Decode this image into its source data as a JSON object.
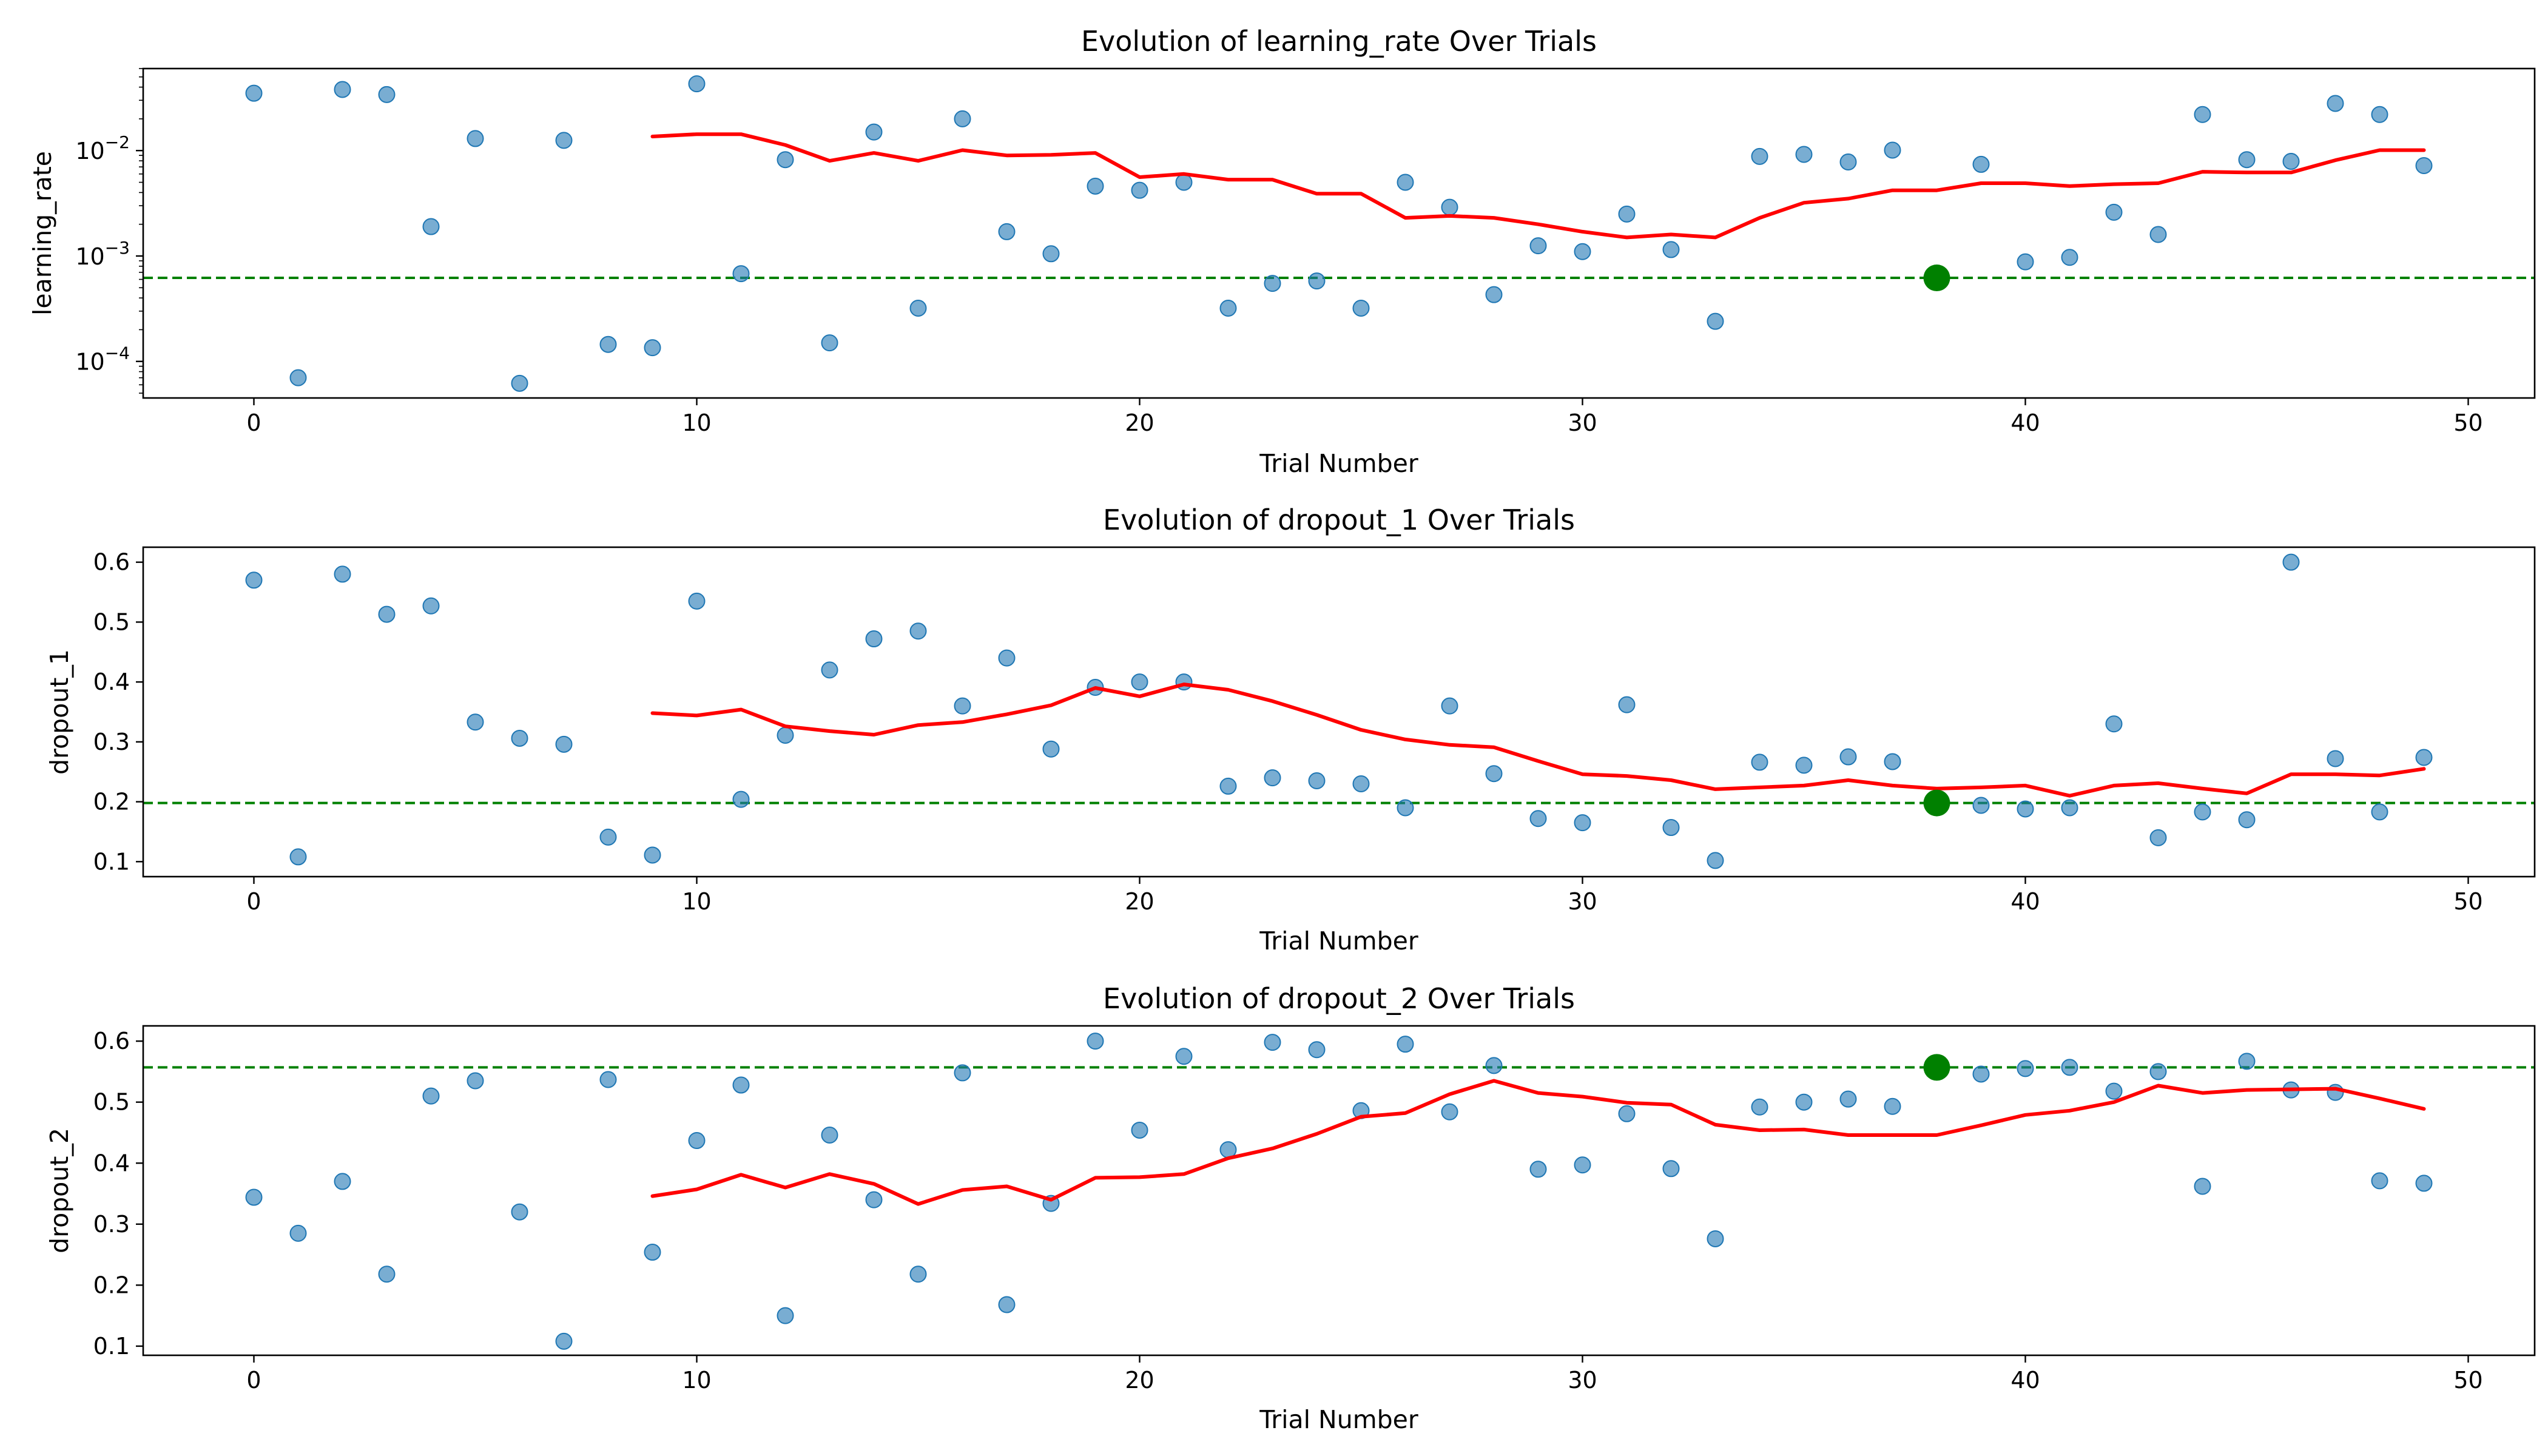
{
  "chart_data": [
    {
      "type": "scatter",
      "title": "Evolution of learning_rate Over Trials",
      "xlabel": "Trial Number",
      "ylabel": "learning_rate",
      "xlim": [
        -2.5,
        51.5
      ],
      "ylim": [
        4.5e-05,
        0.06
      ],
      "yscale": "log",
      "xticks": [
        0,
        10,
        20,
        30,
        40,
        50
      ],
      "yticks": [
        {
          "value": 0.0001,
          "base": "10",
          "exp": "−4"
        },
        {
          "value": 0.001,
          "base": "10",
          "exp": "−3"
        },
        {
          "value": 0.01,
          "base": "10",
          "exp": "−2"
        }
      ],
      "grid": false,
      "colors": {
        "points": "#1f77b4",
        "trend": "#ff0000",
        "best": "#008000"
      },
      "x": [
        0,
        1,
        2,
        3,
        4,
        5,
        6,
        7,
        8,
        9,
        10,
        11,
        12,
        13,
        14,
        15,
        16,
        17,
        18,
        19,
        20,
        21,
        22,
        23,
        24,
        25,
        26,
        27,
        28,
        29,
        30,
        31,
        32,
        33,
        34,
        35,
        36,
        37,
        38,
        39,
        40,
        41,
        42,
        43,
        44,
        45,
        46,
        47,
        48,
        49
      ],
      "values": [
        0.035,
        7e-05,
        0.038,
        0.034,
        0.0019,
        0.013,
        6.2e-05,
        0.0125,
        0.000145,
        0.000135,
        0.043,
        0.00068,
        0.0082,
        0.00015,
        0.015,
        0.00032,
        0.02,
        0.0017,
        0.00105,
        0.0046,
        0.0042,
        0.005,
        0.00032,
        0.00055,
        0.00058,
        0.00032,
        0.005,
        0.0029,
        0.00043,
        0.00125,
        0.0011,
        0.0025,
        0.00115,
        0.00024,
        0.0088,
        0.0092,
        0.0078,
        0.0101,
        0.00062,
        0.0074,
        0.00088,
        0.00097,
        0.0026,
        0.0016,
        0.022,
        0.0082,
        0.0079,
        0.028,
        0.022,
        0.0072
      ],
      "trend_x": [
        9,
        10,
        11,
        12,
        13,
        14,
        15,
        16,
        17,
        18,
        19,
        20,
        21,
        22,
        23,
        24,
        25,
        26,
        27,
        28,
        29,
        30,
        31,
        32,
        33,
        34,
        35,
        36,
        37,
        38,
        39,
        40,
        41,
        42,
        43,
        44,
        45,
        46,
        47,
        48,
        49
      ],
      "trend_values": [
        0.0136,
        0.0143,
        0.0143,
        0.0113,
        0.008,
        0.0095,
        0.008,
        0.0101,
        0.009,
        0.0091,
        0.0095,
        0.0056,
        0.006,
        0.0053,
        0.0053,
        0.0039,
        0.0039,
        0.0023,
        0.0024,
        0.0023,
        0.002,
        0.0017,
        0.0015,
        0.0016,
        0.0015,
        0.0023,
        0.0032,
        0.0035,
        0.0042,
        0.0042,
        0.0049,
        0.0049,
        0.0046,
        0.0048,
        0.0049,
        0.0063,
        0.0062,
        0.0062,
        0.0081,
        0.0101,
        0.0101
      ],
      "best": {
        "x": 38,
        "value": 0.00062
      }
    },
    {
      "type": "scatter",
      "title": "Evolution of dropout_1 Over Trials",
      "xlabel": "Trial Number",
      "ylabel": "dropout_1",
      "xlim": [
        -2.5,
        51.5
      ],
      "ylim": [
        0.075,
        0.625
      ],
      "yscale": "linear",
      "xticks": [
        0,
        10,
        20,
        30,
        40,
        50
      ],
      "yticks": [
        0.1,
        0.2,
        0.3,
        0.4,
        0.5,
        0.6
      ],
      "grid": false,
      "colors": {
        "points": "#1f77b4",
        "trend": "#ff0000",
        "best": "#008000"
      },
      "x": [
        0,
        1,
        2,
        3,
        4,
        5,
        6,
        7,
        8,
        9,
        10,
        11,
        12,
        13,
        14,
        15,
        16,
        17,
        18,
        19,
        20,
        21,
        22,
        23,
        24,
        25,
        26,
        27,
        28,
        29,
        30,
        31,
        32,
        33,
        34,
        35,
        36,
        37,
        38,
        39,
        40,
        41,
        42,
        43,
        44,
        45,
        46,
        47,
        48,
        49
      ],
      "values": [
        0.57,
        0.108,
        0.58,
        0.513,
        0.527,
        0.333,
        0.306,
        0.296,
        0.141,
        0.111,
        0.535,
        0.204,
        0.311,
        0.42,
        0.472,
        0.485,
        0.36,
        0.44,
        0.288,
        0.391,
        0.4,
        0.4,
        0.226,
        0.24,
        0.235,
        0.23,
        0.19,
        0.36,
        0.247,
        0.172,
        0.165,
        0.362,
        0.157,
        0.102,
        0.266,
        0.261,
        0.275,
        0.267,
        0.198,
        0.194,
        0.188,
        0.19,
        0.33,
        0.14,
        0.183,
        0.17,
        0.6,
        0.272,
        0.183,
        0.274
      ],
      "trend_x": [
        9,
        10,
        11,
        12,
        13,
        14,
        15,
        16,
        17,
        18,
        19,
        20,
        21,
        22,
        23,
        24,
        25,
        26,
        27,
        28,
        29,
        30,
        31,
        32,
        33,
        34,
        35,
        36,
        37,
        38,
        39,
        40,
        41,
        42,
        43,
        44,
        45,
        46,
        47,
        48,
        49
      ],
      "trend_values": [
        0.348,
        0.344,
        0.354,
        0.326,
        0.318,
        0.312,
        0.328,
        0.333,
        0.346,
        0.361,
        0.39,
        0.376,
        0.396,
        0.387,
        0.368,
        0.345,
        0.32,
        0.304,
        0.295,
        0.291,
        0.268,
        0.246,
        0.243,
        0.236,
        0.221,
        0.224,
        0.227,
        0.236,
        0.227,
        0.222,
        0.224,
        0.227,
        0.21,
        0.227,
        0.231,
        0.222,
        0.214,
        0.246,
        0.246,
        0.244,
        0.255
      ],
      "best": {
        "x": 38,
        "value": 0.198
      }
    },
    {
      "type": "scatter",
      "title": "Evolution of dropout_2 Over Trials",
      "xlabel": "Trial Number",
      "ylabel": "dropout_2",
      "xlim": [
        -2.5,
        51.5
      ],
      "ylim": [
        0.085,
        0.625
      ],
      "yscale": "linear",
      "xticks": [
        0,
        10,
        20,
        30,
        40,
        50
      ],
      "yticks": [
        0.1,
        0.2,
        0.3,
        0.4,
        0.5,
        0.6
      ],
      "grid": false,
      "colors": {
        "points": "#1f77b4",
        "trend": "#ff0000",
        "best": "#008000"
      },
      "x": [
        0,
        1,
        2,
        3,
        4,
        5,
        6,
        7,
        8,
        9,
        10,
        11,
        12,
        13,
        14,
        15,
        16,
        17,
        18,
        19,
        20,
        21,
        22,
        23,
        24,
        25,
        26,
        27,
        28,
        29,
        30,
        31,
        32,
        33,
        34,
        35,
        36,
        37,
        38,
        39,
        40,
        41,
        42,
        43,
        44,
        45,
        46,
        47,
        48,
        49
      ],
      "values": [
        0.344,
        0.285,
        0.37,
        0.218,
        0.51,
        0.535,
        0.32,
        0.108,
        0.537,
        0.254,
        0.437,
        0.528,
        0.15,
        0.446,
        0.34,
        0.218,
        0.548,
        0.168,
        0.334,
        0.6,
        0.454,
        0.575,
        0.422,
        0.598,
        0.586,
        0.486,
        0.595,
        0.484,
        0.56,
        0.39,
        0.397,
        0.481,
        0.391,
        0.276,
        0.492,
        0.5,
        0.505,
        0.493,
        0.557,
        0.546,
        0.555,
        0.557,
        0.518,
        0.55,
        0.362,
        0.567,
        0.52,
        0.516,
        0.371,
        0.367
      ],
      "trend_x": [
        9,
        10,
        11,
        12,
        13,
        14,
        15,
        16,
        17,
        18,
        19,
        20,
        21,
        22,
        23,
        24,
        25,
        26,
        27,
        28,
        29,
        30,
        31,
        32,
        33,
        34,
        35,
        36,
        37,
        38,
        39,
        40,
        41,
        42,
        43,
        44,
        45,
        46,
        47,
        48,
        49
      ],
      "trend_values": [
        0.346,
        0.357,
        0.381,
        0.36,
        0.382,
        0.366,
        0.333,
        0.356,
        0.362,
        0.34,
        0.376,
        0.377,
        0.382,
        0.408,
        0.424,
        0.448,
        0.476,
        0.482,
        0.513,
        0.535,
        0.515,
        0.509,
        0.499,
        0.496,
        0.463,
        0.454,
        0.455,
        0.446,
        0.446,
        0.446,
        0.462,
        0.479,
        0.486,
        0.5,
        0.527,
        0.515,
        0.52,
        0.521,
        0.522,
        0.506,
        0.489
      ],
      "best": {
        "x": 38,
        "value": 0.557
      }
    }
  ]
}
